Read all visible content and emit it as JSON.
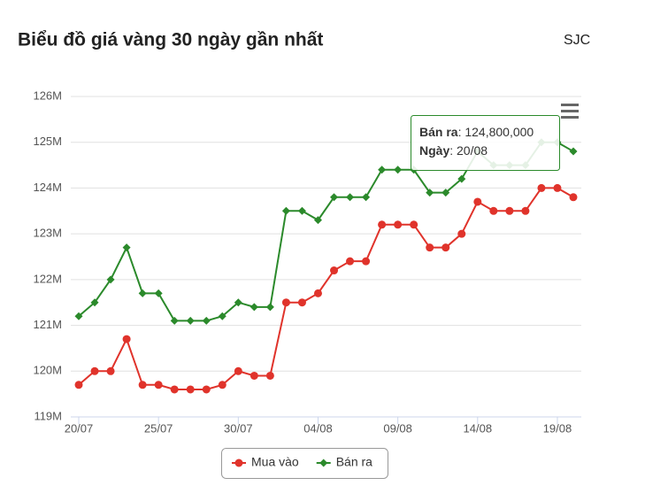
{
  "chart_data": {
    "type": "line",
    "title": "Biểu đồ giá vàng 30 ngày gần nhất",
    "subtitle": "SJC",
    "categories": [
      "20/07",
      null,
      null,
      null,
      null,
      "25/07",
      null,
      null,
      null,
      null,
      "30/07",
      null,
      null,
      null,
      null,
      "04/08",
      null,
      null,
      null,
      null,
      "09/08",
      null,
      null,
      null,
      null,
      "14/08",
      null,
      null,
      null,
      null,
      "19/08",
      null
    ],
    "ylim": [
      119,
      126
    ],
    "yticks": [
      {
        "value": 119,
        "label": "119M"
      },
      {
        "value": 120,
        "label": "120M"
      },
      {
        "value": 121,
        "label": "121M"
      },
      {
        "value": 122,
        "label": "122M"
      },
      {
        "value": 123,
        "label": "123M"
      },
      {
        "value": 124,
        "label": "124M"
      },
      {
        "value": 125,
        "label": "125M"
      },
      {
        "value": 126,
        "label": "126M"
      }
    ],
    "grid": true,
    "series": [
      {
        "name": "Mua vào",
        "color": "#e0332b",
        "marker": "circle",
        "values": [
          119.7,
          120.0,
          120.0,
          120.7,
          119.7,
          119.7,
          119.6,
          119.6,
          119.6,
          119.7,
          120.0,
          119.9,
          119.9,
          121.5,
          121.5,
          121.7,
          122.2,
          122.4,
          122.4,
          123.2,
          123.2,
          123.2,
          122.7,
          122.7,
          123.0,
          123.7,
          123.5,
          123.5,
          123.5,
          124.0,
          124.0,
          123.8
        ]
      },
      {
        "name": "Bán ra",
        "color": "#2b8a2b",
        "marker": "diamond",
        "values": [
          121.2,
          121.5,
          122.0,
          122.7,
          121.7,
          121.7,
          121.1,
          121.1,
          121.1,
          121.2,
          121.5,
          121.4,
          121.4,
          123.5,
          123.5,
          123.3,
          123.8,
          123.8,
          123.8,
          124.4,
          124.4,
          124.4,
          123.9,
          123.9,
          124.2,
          124.8,
          124.5,
          124.5,
          124.5,
          125.0,
          125.0,
          124.8
        ]
      }
    ],
    "tooltip": {
      "rows": [
        {
          "label": "Bán ra",
          "text": ": 124,800,000"
        },
        {
          "label": "Ngày",
          "text": ": 20/08"
        }
      ]
    }
  }
}
